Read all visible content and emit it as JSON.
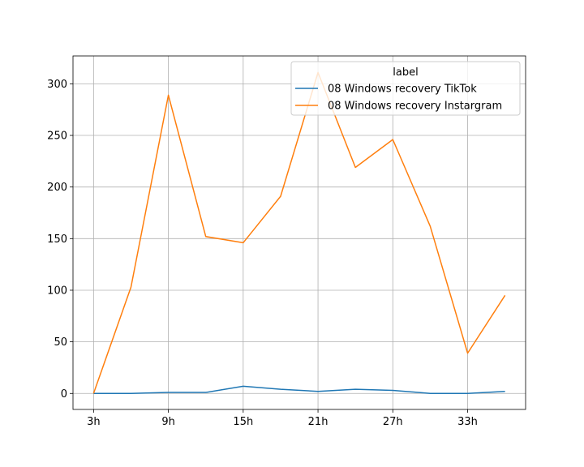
{
  "chart_data": {
    "type": "line",
    "title": "",
    "xlabel": "",
    "ylabel": "",
    "x": [
      3,
      6,
      9,
      12,
      15,
      18,
      21,
      24,
      27,
      30,
      33,
      36
    ],
    "x_unit_suffix": "h",
    "x_tick_values": [
      3,
      9,
      15,
      21,
      27,
      33
    ],
    "x_tick_labels": [
      "3h",
      "9h",
      "15h",
      "21h",
      "27h",
      "33h"
    ],
    "xlim": [
      1.35,
      37.65
    ],
    "ylim": [
      -15.5,
      327
    ],
    "y_ticks": [
      0,
      50,
      100,
      150,
      200,
      250,
      300
    ],
    "y_tick_labels": [
      "0",
      "50",
      "100",
      "150",
      "200",
      "250",
      "300"
    ],
    "grid": true,
    "legend": {
      "title": "label",
      "placement": "top-right"
    },
    "series": [
      {
        "name": "08 Windows recovery TikTok",
        "color": "#1f77b4",
        "values": [
          0,
          0,
          1,
          1,
          7,
          4,
          2,
          4,
          3,
          0,
          0,
          2
        ]
      },
      {
        "name": "08 Windows recovery Instargram",
        "color": "#ff7f0e",
        "values": [
          0,
          103,
          289,
          152,
          146,
          191,
          311,
          219,
          246,
          162,
          39,
          95
        ]
      }
    ]
  }
}
